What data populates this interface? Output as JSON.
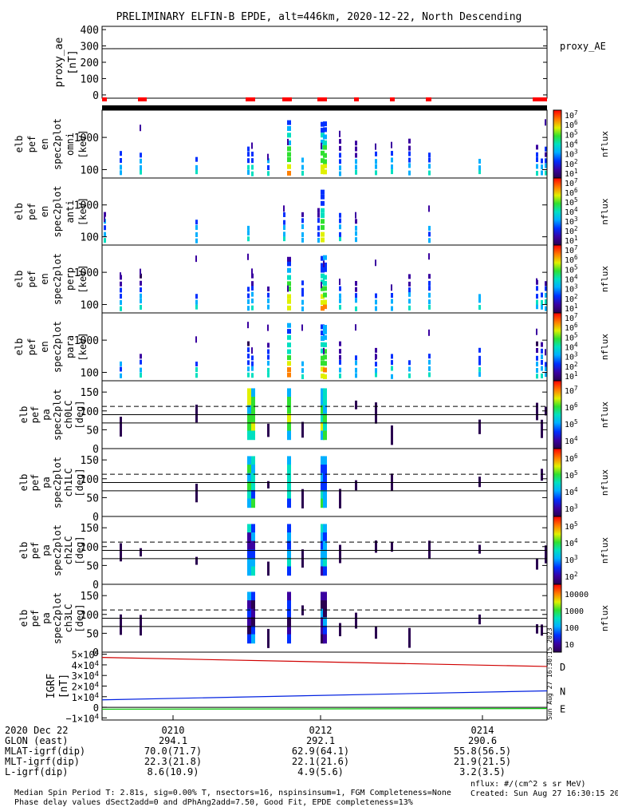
{
  "title": "PRELIMINARY ELFIN-B EPDE, alt=446km, 2020-12-22, North Descending",
  "chart_data": [
    {
      "type": "line",
      "name": "proxy_ae",
      "ylabel": [
        "proxy_ae",
        "[nT]"
      ],
      "legend": "proxy_AE",
      "ylim": [
        -20,
        420
      ],
      "yticks": [
        "400",
        "300",
        "200",
        "100",
        "0"
      ],
      "x": [
        "02:08:40",
        "02:15:10"
      ],
      "values": [
        283,
        287
      ]
    },
    {
      "type": "heatmap",
      "name": "en-spectrogram",
      "ylabel": [
        "elb",
        "pef",
        "en",
        "spec2plot",
        "omni",
        "[keV]"
      ],
      "yticks": [
        "1000",
        "100"
      ],
      "colorbar": {
        "label": "nflux",
        "ticks": [
          "10^7",
          "10^6",
          "10^5",
          "10^4",
          "10^3",
          "10^2",
          "10^1"
        ]
      }
    },
    {
      "type": "heatmap",
      "name": "anti-spectrogram",
      "ylabel": [
        "elb",
        "pef",
        "en",
        "spec2plot",
        "anti",
        "[keV]"
      ],
      "yticks": [
        "1000",
        "100"
      ],
      "colorbar": {
        "label": "nflux",
        "ticks": [
          "10^7",
          "10^6",
          "10^5",
          "10^4",
          "10^3",
          "10^2",
          "10^1"
        ]
      }
    },
    {
      "type": "heatmap",
      "name": "perp-spectrogram",
      "ylabel": [
        "elb",
        "pef",
        "en",
        "spec2plot",
        "perp",
        "[keV]"
      ],
      "yticks": [
        "1000",
        "100"
      ],
      "colorbar": {
        "label": "nflux",
        "ticks": [
          "10^7",
          "10^6",
          "10^5",
          "10^4",
          "10^3",
          "10^2",
          "10^1"
        ]
      }
    },
    {
      "type": "heatmap",
      "name": "para-spectrogram",
      "ylabel": [
        "elb",
        "pef",
        "en",
        "spec2plot",
        "para",
        "[keV]"
      ],
      "yticks": [
        "1000",
        "100"
      ],
      "colorbar": {
        "label": "nflux",
        "ticks": [
          "10^7",
          "10^6",
          "10^5",
          "10^4",
          "10^3",
          "10^2",
          "10^1"
        ]
      }
    },
    {
      "type": "heatmap",
      "name": "pa-ch0LC",
      "ylabel": [
        "elb",
        "pef",
        "pa",
        "spec2plot",
        "ch0LC",
        "[deg]"
      ],
      "yticks": [
        "150",
        "100",
        "50",
        "0"
      ],
      "colorbar": {
        "label": "nflux",
        "ticks": [
          "10^7",
          "10^6",
          "10^5",
          "10^4"
        ]
      }
    },
    {
      "type": "heatmap",
      "name": "pa-ch1LC",
      "ylabel": [
        "elb",
        "pef",
        "pa",
        "spec2plot",
        "ch1LC",
        "[deg]"
      ],
      "yticks": [
        "150",
        "100",
        "50",
        "0"
      ],
      "colorbar": {
        "label": "nflux",
        "ticks": [
          "10^6",
          "10^5",
          "10^4",
          "10^3"
        ]
      }
    },
    {
      "type": "heatmap",
      "name": "pa-ch2LC",
      "ylabel": [
        "elb",
        "pef",
        "pa",
        "spec2plot",
        "ch2LC",
        "[deg]"
      ],
      "yticks": [
        "150",
        "100",
        "50",
        "0"
      ],
      "colorbar": {
        "label": "nflux",
        "ticks": [
          "10^5",
          "10^4",
          "10^3",
          "10^2"
        ]
      }
    },
    {
      "type": "heatmap",
      "name": "pa-ch3LC",
      "ylabel": [
        "elb",
        "pef",
        "pa",
        "spec2plot",
        "ch3LC",
        "[deg]"
      ],
      "yticks": [
        "150",
        "100",
        "50",
        "0"
      ],
      "colorbar": {
        "label": "nflux",
        "ticks": [
          "10000",
          "1000",
          "100",
          "10"
        ]
      }
    },
    {
      "type": "line",
      "name": "igrf",
      "ylabel": [
        "IGRF",
        "[nT]"
      ],
      "yticks": [
        "5×10^4",
        "4×10^4",
        "3×10^4",
        "2×10^4",
        "1×10^4",
        "0",
        "−1×10^4"
      ],
      "ylim": [
        -12000,
        52000
      ],
      "series": [
        {
          "name": "D",
          "color": "#d00000",
          "values": [
            47000,
            38500
          ]
        },
        {
          "name": "N",
          "color": "#0020e0",
          "values": [
            7000,
            15500
          ]
        },
        {
          "name": "E",
          "color": "#00c000",
          "values": [
            -1800,
            -1200
          ]
        }
      ]
    }
  ],
  "side_stamp": "Sun Aug 27 16:30:15 2023",
  "xaxis": {
    "labels": [
      "2020 Dec 22",
      "GLON (east)",
      "MLAT-igrf(dip)",
      "MLT-igrf(dip)",
      "L-igrf(dip)"
    ],
    "ticks": [
      {
        "time": "0210",
        "glon": "294.1",
        "mlat": "70.0(71.7)",
        "mlt": "22.3(21.8)",
        "l": "8.6(10.9)"
      },
      {
        "time": "0212",
        "glon": "292.1",
        "mlat": "62.9(64.1)",
        "mlt": "22.1(21.6)",
        "l": "4.9(5.6)"
      },
      {
        "time": "0214",
        "glon": "290.6",
        "mlat": "55.8(56.5)",
        "mlt": "21.9(21.5)",
        "l": "3.2(3.5)"
      }
    ]
  },
  "footer": {
    "line1_left": "Median Spin Period T: 2.81s, sig=0.00% T, nsectors=16, nspinsinsum=1, FGM Completeness=None",
    "line1_right": "nflux: #/(cm^2 s sr MeV)",
    "line2_left": "Phase delay values dSect2add=0 and dPhAng2add=7.50, Good Fit, EPDE completeness=13%",
    "line2_right": "Created: Sun Aug 27 16:30:15 2023"
  },
  "colors": {
    "frame": "#000000",
    "red_marker": "#ff0000"
  }
}
